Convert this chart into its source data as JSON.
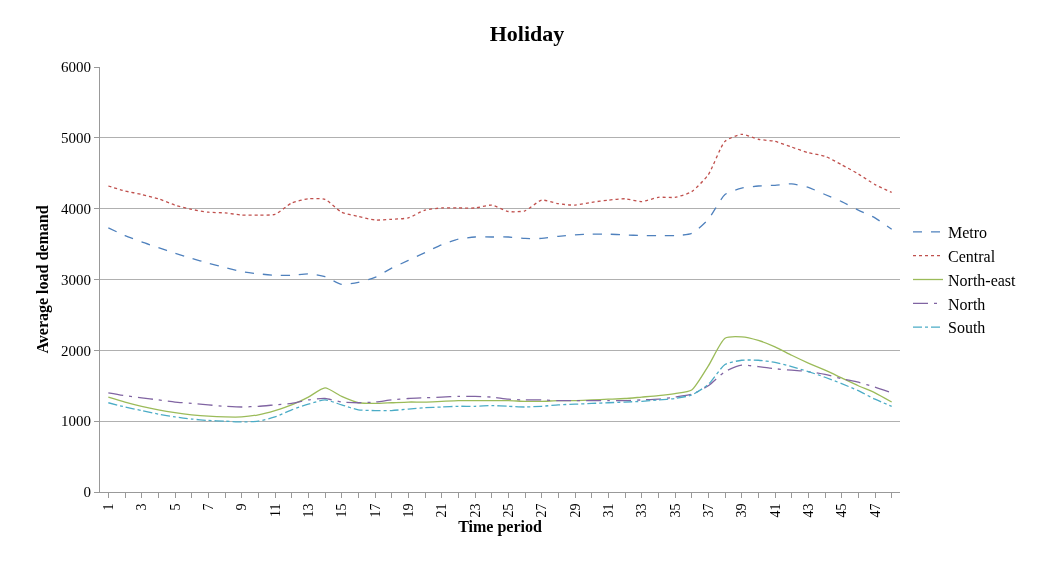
{
  "chart_data": {
    "type": "line",
    "title": "Holiday",
    "xlabel": "Time period",
    "ylabel": "Average load demand",
    "categories": [
      "1",
      null,
      "3",
      null,
      "5",
      null,
      "7",
      null,
      "9",
      null,
      "11",
      null,
      "13",
      null,
      "15",
      null,
      "17",
      null,
      "19",
      null,
      "21",
      null,
      "23",
      null,
      "25",
      null,
      "27",
      null,
      "29",
      null,
      "31",
      null,
      "33",
      null,
      "35",
      null,
      "37",
      null,
      "39",
      null,
      "41",
      null,
      "43",
      null,
      "45",
      null,
      "47",
      null
    ],
    "ylim": [
      0,
      6000
    ],
    "yticks": [
      0,
      1000,
      2000,
      3000,
      4000,
      5000,
      6000
    ],
    "grid": "y",
    "legend": "right",
    "marker": "none",
    "series": [
      {
        "name": "Metro",
        "color": "#4f81bd",
        "line_style": "dashed",
        "values": [
          3730,
          3620,
          3530,
          3450,
          3370,
          3300,
          3230,
          3170,
          3110,
          3080,
          3060,
          3060,
          3080,
          3040,
          2930,
          2960,
          3030,
          3160,
          3270,
          3380,
          3490,
          3570,
          3600,
          3600,
          3600,
          3580,
          3580,
          3610,
          3630,
          3640,
          3640,
          3630,
          3620,
          3620,
          3620,
          3650,
          3850,
          4200,
          4290,
          4320,
          4330,
          4350,
          4300,
          4200,
          4100,
          3980,
          3870,
          3710
        ]
      },
      {
        "name": "Central",
        "color": "#c0504d",
        "line_style": "dotted",
        "values": [
          4320,
          4250,
          4200,
          4140,
          4050,
          3990,
          3950,
          3940,
          3910,
          3910,
          3920,
          4080,
          4140,
          4130,
          3950,
          3890,
          3840,
          3850,
          3870,
          3980,
          4010,
          4010,
          4010,
          4050,
          3960,
          3970,
          4120,
          4070,
          4050,
          4090,
          4120,
          4140,
          4100,
          4160,
          4160,
          4240,
          4480,
          4950,
          5050,
          4980,
          4950,
          4870,
          4790,
          4740,
          4620,
          4490,
          4340,
          4230
        ]
      },
      {
        "name": "North-east",
        "color": "#9bbb59",
        "line_style": "solid",
        "values": [
          1340,
          1270,
          1210,
          1160,
          1120,
          1090,
          1070,
          1060,
          1060,
          1090,
          1150,
          1230,
          1340,
          1470,
          1350,
          1260,
          1250,
          1260,
          1270,
          1270,
          1280,
          1290,
          1290,
          1290,
          1290,
          1280,
          1280,
          1290,
          1290,
          1300,
          1310,
          1320,
          1340,
          1360,
          1390,
          1440,
          1780,
          2170,
          2190,
          2140,
          2050,
          1930,
          1820,
          1720,
          1610,
          1500,
          1400,
          1270
        ]
      },
      {
        "name": "North",
        "color": "#8064a2",
        "line_style": "longdashdot",
        "values": [
          1400,
          1360,
          1330,
          1300,
          1270,
          1250,
          1230,
          1210,
          1200,
          1210,
          1230,
          1250,
          1300,
          1320,
          1270,
          1260,
          1270,
          1300,
          1320,
          1330,
          1340,
          1350,
          1350,
          1340,
          1310,
          1300,
          1300,
          1290,
          1290,
          1290,
          1290,
          1290,
          1300,
          1310,
          1340,
          1380,
          1500,
          1700,
          1790,
          1770,
          1740,
          1720,
          1700,
          1660,
          1600,
          1550,
          1480,
          1400
        ]
      },
      {
        "name": "South",
        "color": "#4bacc6",
        "line_style": "dashdot",
        "values": [
          1260,
          1200,
          1150,
          1100,
          1060,
          1030,
          1010,
          1000,
          990,
          1000,
          1060,
          1160,
          1240,
          1300,
          1230,
          1160,
          1150,
          1150,
          1170,
          1190,
          1200,
          1210,
          1210,
          1220,
          1210,
          1200,
          1210,
          1230,
          1240,
          1250,
          1260,
          1270,
          1280,
          1300,
          1320,
          1370,
          1520,
          1800,
          1860,
          1860,
          1830,
          1770,
          1700,
          1620,
          1530,
          1430,
          1310,
          1210
        ]
      }
    ]
  }
}
